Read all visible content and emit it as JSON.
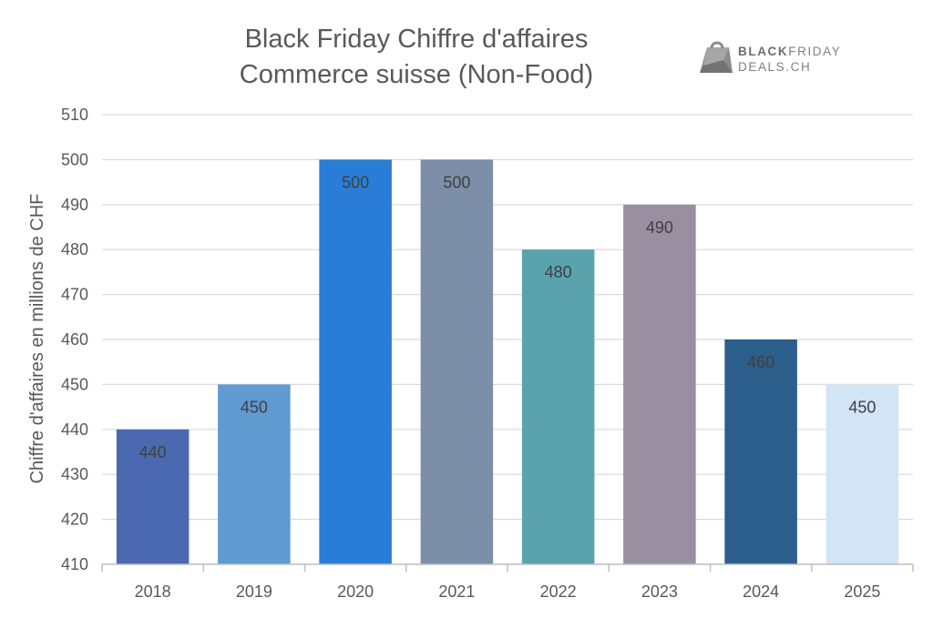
{
  "chart_data": {
    "type": "bar",
    "title": "Black Friday Chiffre d'affaires",
    "subtitle": "Commerce suisse (Non-Food)",
    "xlabel": "",
    "ylabel": "Chiffre d'affaires en millions de CHF",
    "categories": [
      "2018",
      "2019",
      "2020",
      "2021",
      "2022",
      "2023",
      "2024",
      "2025"
    ],
    "values": [
      440,
      450,
      500,
      500,
      480,
      490,
      460,
      450
    ],
    "data_labels": [
      "440",
      "450",
      "500",
      "500",
      "480",
      "490",
      "460",
      "450"
    ],
    "bar_colors": [
      "#4a69b0",
      "#5f9ad0",
      "#2a7dd7",
      "#7d8ea8",
      "#5aa3ad",
      "#9a8fa0",
      "#2c5e8c",
      "#d3e4f5"
    ],
    "ylim": [
      410,
      510
    ],
    "yticks": [
      410,
      420,
      430,
      440,
      450,
      460,
      470,
      480,
      490,
      500,
      510
    ],
    "grid": true,
    "legend": "none"
  },
  "branding": {
    "logo_line1_bold": "BLACK",
    "logo_line1_rest": "FRIDAY",
    "logo_line2": "DEALS.CH",
    "logo_icon": "shopping-bag-icon"
  },
  "colors": {
    "grid": "#d9d9d9",
    "axis_line": "#bfbfbf",
    "text": "#595959",
    "logo": "#7f7f7f"
  }
}
